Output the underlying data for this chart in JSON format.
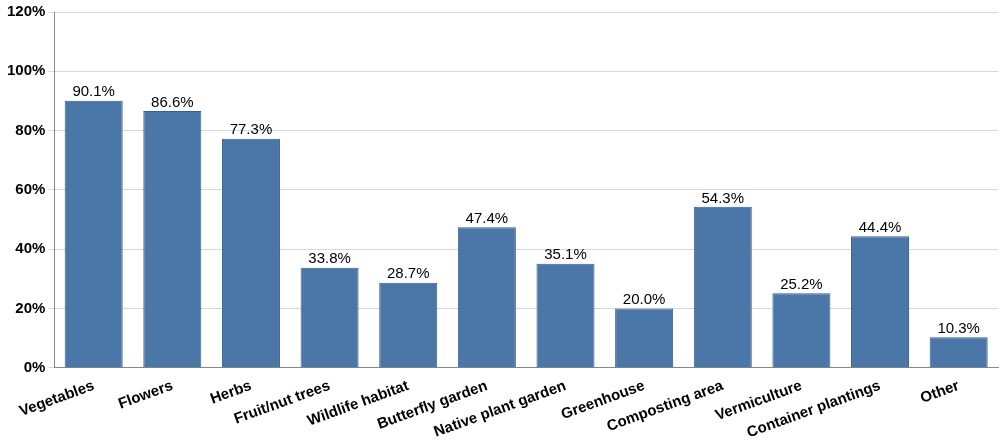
{
  "chart_data": {
    "type": "bar",
    "categories": [
      "Vegetables",
      "Flowers",
      "Herbs",
      "Fruit/nut trees",
      "Wildlife habitat",
      "Butterfly garden",
      "Native plant garden",
      "Greenhouse",
      "Composting area",
      "Vermiculture",
      "Container plantings",
      "Other"
    ],
    "values": [
      90.1,
      86.6,
      77.3,
      33.8,
      28.7,
      47.4,
      35.1,
      20.0,
      54.3,
      25.2,
      44.4,
      10.3
    ],
    "value_labels": [
      "90.1%",
      "86.6%",
      "77.3%",
      "33.8%",
      "28.7%",
      "47.4%",
      "35.1%",
      "20.0%",
      "54.3%",
      "25.2%",
      "44.4%",
      "10.3%"
    ],
    "color": "#4a77a8",
    "ylim": [
      0,
      120
    ],
    "yticks": [
      {
        "value": 0,
        "label": "0%"
      },
      {
        "value": 20,
        "label": "20%"
      },
      {
        "value": 40,
        "label": "40%"
      },
      {
        "value": 60,
        "label": "60%"
      },
      {
        "value": 80,
        "label": "80%"
      },
      {
        "value": 100,
        "label": "100%"
      },
      {
        "value": 120,
        "label": "120%"
      }
    ],
    "grid": "y",
    "legend": false
  }
}
